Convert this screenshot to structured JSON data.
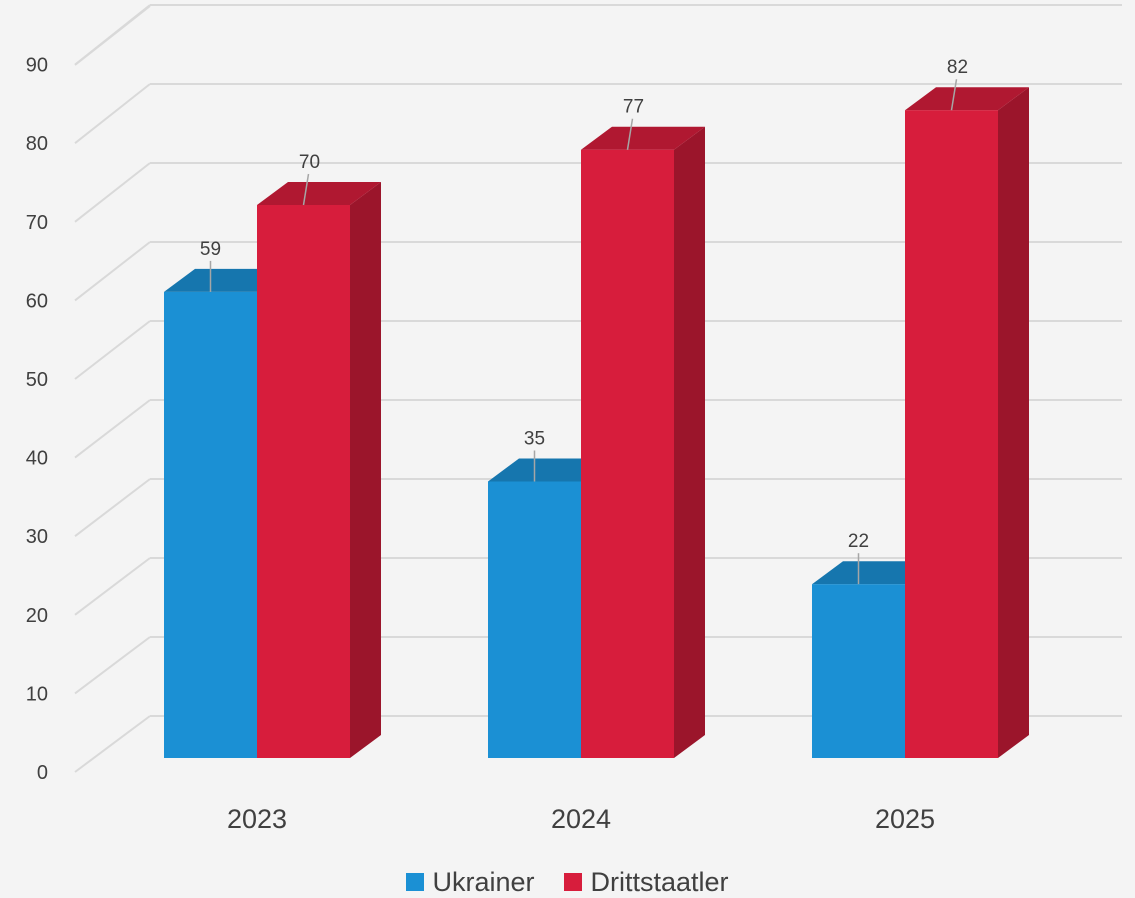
{
  "chart_data": {
    "type": "bar",
    "categories": [
      "2023",
      "2024",
      "2025"
    ],
    "series": [
      {
        "name": "Ukrainer",
        "values": [
          59,
          35,
          22
        ],
        "color": "#1b90d4"
      },
      {
        "name": "Drittstaatler",
        "values": [
          70,
          77,
          82
        ],
        "color": "#d71d3c"
      }
    ],
    "yticks": [
      "0",
      "10",
      "20",
      "30",
      "40",
      "50",
      "60",
      "70",
      "80",
      "90"
    ],
    "ylim": [
      0,
      90
    ],
    "title": "",
    "xlabel": "",
    "ylabel": "",
    "grid": true,
    "style": "3d-column",
    "legend_position": "bottom"
  }
}
